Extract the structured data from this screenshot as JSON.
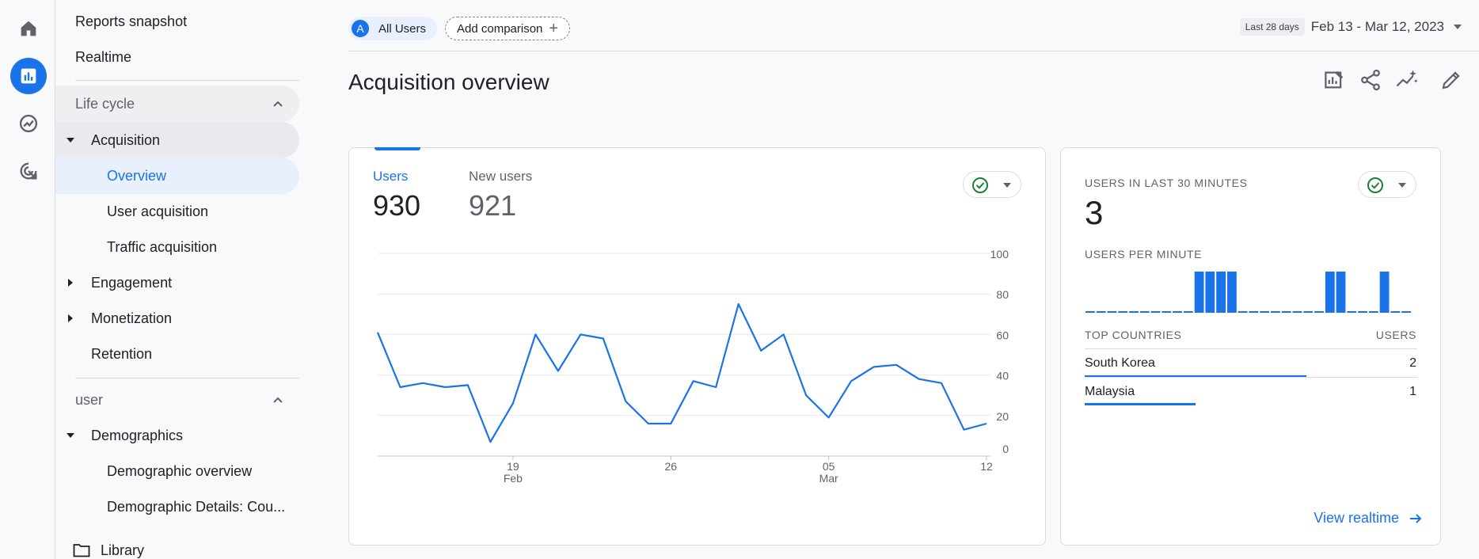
{
  "rail": {
    "icons": [
      "home-icon",
      "reports-icon",
      "explore-icon",
      "advertising-icon"
    ]
  },
  "nav": {
    "reports_snapshot": "Reports snapshot",
    "realtime": "Realtime",
    "lifecycle": "Life cycle",
    "acquisition": "Acquisition",
    "overview": "Overview",
    "user_acquisition": "User acquisition",
    "traffic_acquisition": "Traffic acquisition",
    "engagement": "Engagement",
    "monetization": "Monetization",
    "retention": "Retention",
    "user_section": "user",
    "demographics": "Demographics",
    "demographic_overview": "Demographic overview",
    "demographic_details": "Demographic Details: Cou...",
    "library": "Library"
  },
  "header": {
    "users_chip_letter": "A",
    "users_chip": "All Users",
    "add_comparison": "Add comparison",
    "range_badge": "Last 28 days",
    "date_range": "Feb 13 - Mar 12, 2023"
  },
  "page_title": "Acquisition overview",
  "toolbar": {
    "icons": [
      "customize-report-icon",
      "share-icon",
      "insights-icon",
      "edit-icon"
    ]
  },
  "main_card": {
    "users_label": "Users",
    "users_value": "930",
    "new_users_label": "New users",
    "new_users_value": "921",
    "y_ticks": [
      "100",
      "80",
      "60",
      "40",
      "20",
      "0"
    ],
    "x_ticks": [
      {
        "day": "19",
        "month": "Feb"
      },
      {
        "day": "26",
        "month": ""
      },
      {
        "day": "05",
        "month": "Mar"
      },
      {
        "day": "12",
        "month": ""
      }
    ]
  },
  "realtime_card": {
    "title": "USERS IN LAST 30 MINUTES",
    "value": "3",
    "per_minute_label": "USERS PER MINUTE",
    "col_countries": "TOP COUNTRIES",
    "col_users": "USERS",
    "rows": [
      {
        "country": "South Korea",
        "users": "2",
        "share": 1.0
      },
      {
        "country": "Malaysia",
        "users": "1",
        "share": 0.5
      }
    ],
    "view_realtime": "View realtime"
  },
  "chart_data": [
    {
      "type": "line",
      "title": "",
      "xlabel": "",
      "ylabel": "",
      "ylim": [
        0,
        100
      ],
      "x": [
        "Feb 13",
        "Feb 14",
        "Feb 15",
        "Feb 16",
        "Feb 17",
        "Feb 18",
        "Feb 19",
        "Feb 20",
        "Feb 21",
        "Feb 22",
        "Feb 23",
        "Feb 24",
        "Feb 25",
        "Feb 26",
        "Feb 27",
        "Feb 28",
        "Mar 1",
        "Mar 2",
        "Mar 3",
        "Mar 4",
        "Mar 5",
        "Mar 6",
        "Mar 7",
        "Mar 8",
        "Mar 9",
        "Mar 10",
        "Mar 11",
        "Mar 12"
      ],
      "series": [
        {
          "values": [
            61,
            34,
            36,
            34,
            35,
            7,
            26,
            60,
            42,
            60,
            58,
            27,
            16,
            16,
            37,
            34,
            75,
            52,
            60,
            30,
            19,
            37,
            44,
            45,
            38,
            36,
            13,
            16
          ]
        }
      ],
      "grid": true,
      "y_axis_side": "right"
    },
    {
      "type": "bar",
      "title": "USERS PER MINUTE",
      "values": [
        0,
        0,
        0,
        0,
        0,
        0,
        0,
        0,
        0,
        0,
        1,
        1,
        1,
        1,
        0,
        0,
        0,
        0,
        0,
        0,
        0,
        0,
        1,
        1,
        0,
        0,
        0,
        1,
        0,
        0
      ]
    }
  ],
  "colors": {
    "accent": "#1a73e8",
    "check": "#188038"
  }
}
